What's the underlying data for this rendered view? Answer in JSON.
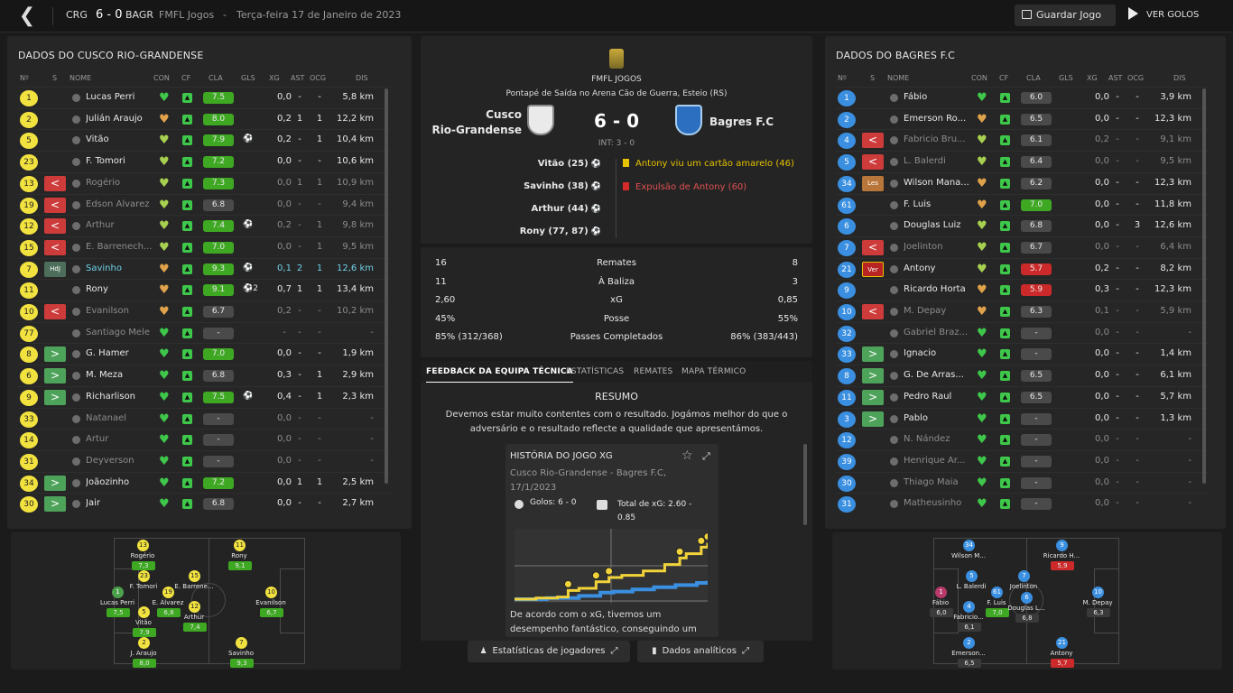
{
  "topbar": {
    "home": "CRG",
    "score": "6 - 0",
    "away": "BAGR",
    "competition": "FMFL Jogos",
    "sep": "-",
    "date": "Terça-feira 17 de Janeiro de 2023",
    "save_label": "Guardar Jogo",
    "goals_label": "VER GOLOS"
  },
  "left_panel": {
    "title": "DADOS DO CUSCO RIO-GRANDENSE"
  },
  "right_panel": {
    "title": "DADOS DO BAGRES F.C"
  },
  "columns": {
    "no": "Nº",
    "s": "S",
    "name": "NOME",
    "con": "CON",
    "cf": "CF",
    "cla": "CLA",
    "gls": "GLS",
    "xg": "XG",
    "ast": "AST",
    "ocg": "OCG",
    "dis": "DIS"
  },
  "home_players": [
    {
      "no": "1",
      "sub": "",
      "name": "Lucas Perri",
      "rating": "7.5",
      "rc": "#3ea823",
      "goals": "",
      "xg": "0,0",
      "ast": "-",
      "ocg": "-",
      "dis": "5,8 km",
      "dim": false,
      "hl": false,
      "heart": "#3ec74a"
    },
    {
      "no": "2",
      "sub": "",
      "name": "Julián Araujo",
      "rating": "8.0",
      "rc": "#3ea823",
      "goals": "",
      "xg": "0,2",
      "ast": "1",
      "ocg": "1",
      "dis": "12,2 km",
      "dim": false,
      "hl": false,
      "heart": "#e0a24a"
    },
    {
      "no": "5",
      "sub": "",
      "name": "Vitão",
      "rating": "7.9",
      "rc": "#3ea823",
      "goals": "⚽",
      "xg": "0,2",
      "ast": "-",
      "ocg": "1",
      "dis": "10,4 km",
      "dim": false,
      "hl": false,
      "heart": "#a8d050"
    },
    {
      "no": "23",
      "sub": "",
      "name": "F. Tomori",
      "rating": "7.2",
      "rc": "#3ea823",
      "goals": "",
      "xg": "0,0",
      "ast": "-",
      "ocg": "-",
      "dis": "10,6 km",
      "dim": false,
      "hl": false,
      "heart": "#a8d050"
    },
    {
      "no": "13",
      "sub": "out",
      "name": "Rogério",
      "rating": "7.3",
      "rc": "#3ea823",
      "goals": "",
      "xg": "0,0",
      "ast": "1",
      "ocg": "1",
      "dis": "10,9 km",
      "dim": true,
      "hl": false,
      "heart": "#a8d050"
    },
    {
      "no": "19",
      "sub": "out",
      "name": "Edson Álvarez",
      "rating": "6.8",
      "rc": "#4a4a4a",
      "goals": "",
      "xg": "0,0",
      "ast": "-",
      "ocg": "-",
      "dis": "9,4 km",
      "dim": true,
      "hl": false,
      "heart": "#a8d050"
    },
    {
      "no": "12",
      "sub": "out",
      "name": "Arthur",
      "rating": "7.4",
      "rc": "#3ea823",
      "goals": "⚽",
      "xg": "0,2",
      "ast": "-",
      "ocg": "1",
      "dis": "9,8 km",
      "dim": true,
      "hl": false,
      "heart": "#a8d050"
    },
    {
      "no": "15",
      "sub": "out",
      "name": "E. Barrenech...",
      "rating": "7.0",
      "rc": "#3ea823",
      "goals": "",
      "xg": "0,0",
      "ast": "-",
      "ocg": "1",
      "dis": "9,5 km",
      "dim": true,
      "hl": false,
      "heart": "#a8d050"
    },
    {
      "no": "7",
      "sub": "hdj",
      "name": "Savinho",
      "rating": "9.3",
      "rc": "#3ea823",
      "goals": "⚽",
      "xg": "0,1",
      "ast": "2",
      "ocg": "1",
      "dis": "12,6 km",
      "dim": false,
      "hl": true,
      "heart": "#e0a24a"
    },
    {
      "no": "11",
      "sub": "",
      "name": "Rony",
      "rating": "9.1",
      "rc": "#3ea823",
      "goals": "⚽2",
      "xg": "0,7",
      "ast": "1",
      "ocg": "1",
      "dis": "13,4 km",
      "dim": false,
      "hl": false,
      "heart": "#e0a24a"
    },
    {
      "no": "10",
      "sub": "out",
      "name": "Evanilson",
      "rating": "6.7",
      "rc": "#4a4a4a",
      "goals": "",
      "xg": "0,2",
      "ast": "-",
      "ocg": "-",
      "dis": "10,2 km",
      "dim": true,
      "hl": false,
      "heart": "#e0a24a"
    },
    {
      "no": "77",
      "sub": "",
      "name": "Santiago Mele",
      "rating": "-",
      "rc": "#4a4a4a",
      "goals": "",
      "xg": "-",
      "ast": "-",
      "ocg": "-",
      "dis": "-",
      "dim": true,
      "hl": false,
      "heart": "#3ec74a"
    },
    {
      "no": "8",
      "sub": "in",
      "name": "G. Hamer",
      "rating": "7.0",
      "rc": "#3ea823",
      "goals": "",
      "xg": "0,0",
      "ast": "-",
      "ocg": "-",
      "dis": "1,9 km",
      "dim": false,
      "hl": false,
      "heart": "#3ec74a"
    },
    {
      "no": "6",
      "sub": "in",
      "name": "M. Meza",
      "rating": "6.8",
      "rc": "#4a4a4a",
      "goals": "",
      "xg": "0,3",
      "ast": "-",
      "ocg": "1",
      "dis": "2,9 km",
      "dim": false,
      "hl": false,
      "heart": "#3ec74a"
    },
    {
      "no": "9",
      "sub": "in",
      "name": "Richarlison",
      "rating": "7.5",
      "rc": "#3ea823",
      "goals": "⚽",
      "xg": "0,4",
      "ast": "-",
      "ocg": "1",
      "dis": "2,3 km",
      "dim": false,
      "hl": false,
      "heart": "#3ec74a"
    },
    {
      "no": "33",
      "sub": "",
      "name": "Natanael",
      "rating": "-",
      "rc": "#4a4a4a",
      "goals": "",
      "xg": "0,0",
      "ast": "-",
      "ocg": "-",
      "dis": "-",
      "dim": true,
      "hl": false,
      "heart": "#3ec74a"
    },
    {
      "no": "14",
      "sub": "",
      "name": "Artur",
      "rating": "-",
      "rc": "#4a4a4a",
      "goals": "",
      "xg": "0,0",
      "ast": "-",
      "ocg": "-",
      "dis": "-",
      "dim": true,
      "hl": false,
      "heart": "#3ec74a"
    },
    {
      "no": "31",
      "sub": "",
      "name": "Deyverson",
      "rating": "-",
      "rc": "#4a4a4a",
      "goals": "",
      "xg": "0,0",
      "ast": "-",
      "ocg": "-",
      "dis": "-",
      "dim": true,
      "hl": false,
      "heart": "#3ec74a"
    },
    {
      "no": "34",
      "sub": "in",
      "name": "Joãozinho",
      "rating": "7.2",
      "rc": "#3ea823",
      "goals": "",
      "xg": "0,0",
      "ast": "1",
      "ocg": "1",
      "dis": "2,5 km",
      "dim": false,
      "hl": false,
      "heart": "#3ec74a"
    },
    {
      "no": "30",
      "sub": "in",
      "name": "Jair",
      "rating": "6.8",
      "rc": "#4a4a4a",
      "goals": "",
      "xg": "0,0",
      "ast": "-",
      "ocg": "-",
      "dis": "2,7 km",
      "dim": false,
      "hl": false,
      "heart": "#3ec74a"
    }
  ],
  "away_players": [
    {
      "no": "1",
      "sub": "",
      "name": "Fábio",
      "rating": "6.0",
      "rc": "#4a4a4a",
      "goals": "",
      "xg": "0,0",
      "ast": "-",
      "ocg": "-",
      "dis": "3,9 km",
      "dim": false,
      "heart": "#3ec74a"
    },
    {
      "no": "2",
      "sub": "",
      "name": "Emerson Ro...",
      "rating": "6.5",
      "rc": "#4a4a4a",
      "goals": "",
      "xg": "0,0",
      "ast": "-",
      "ocg": "-",
      "dis": "12,3 km",
      "dim": false,
      "heart": "#e0a24a"
    },
    {
      "no": "4",
      "sub": "out",
      "name": "Fabricio Bru...",
      "rating": "6.1",
      "rc": "#4a4a4a",
      "goals": "",
      "xg": "0,2",
      "ast": "-",
      "ocg": "-",
      "dis": "9,1 km",
      "dim": true,
      "heart": "#a8d050"
    },
    {
      "no": "5",
      "sub": "out",
      "name": "L. Balerdi",
      "rating": "6.4",
      "rc": "#4a4a4a",
      "goals": "",
      "xg": "0,0",
      "ast": "-",
      "ocg": "-",
      "dis": "9,5 km",
      "dim": true,
      "heart": "#a8d050"
    },
    {
      "no": "34",
      "sub": "les",
      "name": "Wilson Mana...",
      "rating": "6.2",
      "rc": "#4a4a4a",
      "goals": "",
      "xg": "0,0",
      "ast": "-",
      "ocg": "-",
      "dis": "12,3 km",
      "dim": false,
      "heart": "#e0a24a"
    },
    {
      "no": "61",
      "sub": "",
      "name": "F. Luis",
      "rating": "7.0",
      "rc": "#3ea823",
      "goals": "",
      "xg": "0,0",
      "ast": "-",
      "ocg": "-",
      "dis": "11,8 km",
      "dim": false,
      "heart": "#e0a24a"
    },
    {
      "no": "6",
      "sub": "",
      "name": "Douglas Luiz",
      "rating": "6.8",
      "rc": "#4a4a4a",
      "goals": "",
      "xg": "0,0",
      "ast": "-",
      "ocg": "3",
      "dis": "12,6 km",
      "dim": false,
      "heart": "#a8d050"
    },
    {
      "no": "7",
      "sub": "out",
      "name": "Joelinton",
      "rating": "6.7",
      "rc": "#4a4a4a",
      "goals": "",
      "xg": "0,0",
      "ast": "-",
      "ocg": "-",
      "dis": "6,4 km",
      "dim": true,
      "heart": "#a8d050"
    },
    {
      "no": "21",
      "sub": "ver",
      "name": "Antony",
      "rating": "5.7",
      "rc": "#cc2a2a",
      "goals": "",
      "xg": "0,2",
      "ast": "-",
      "ocg": "-",
      "dis": "8,2 km",
      "dim": false,
      "heart": "#a8d050"
    },
    {
      "no": "9",
      "sub": "",
      "name": "Ricardo Horta",
      "rating": "5.9",
      "rc": "#cc2a2a",
      "goals": "",
      "xg": "0,3",
      "ast": "-",
      "ocg": "-",
      "dis": "12,3 km",
      "dim": false,
      "heart": "#e0a24a"
    },
    {
      "no": "10",
      "sub": "out",
      "name": "M. Depay",
      "rating": "6.3",
      "rc": "#4a4a4a",
      "goals": "",
      "xg": "0,1",
      "ast": "-",
      "ocg": "-",
      "dis": "5,9 km",
      "dim": true,
      "heart": "#e0a24a"
    },
    {
      "no": "32",
      "sub": "",
      "name": "Gabriel Braz...",
      "rating": "-",
      "rc": "#4a4a4a",
      "goals": "",
      "xg": "0,0",
      "ast": "-",
      "ocg": "-",
      "dis": "-",
      "dim": true,
      "heart": "#3ec74a"
    },
    {
      "no": "33",
      "sub": "in",
      "name": "Ignacio",
      "rating": "-",
      "rc": "#4a4a4a",
      "goals": "",
      "xg": "0,0",
      "ast": "-",
      "ocg": "-",
      "dis": "1,4 km",
      "dim": false,
      "heart": "#3ec74a"
    },
    {
      "no": "8",
      "sub": "in",
      "name": "G. De Arras...",
      "rating": "6.5",
      "rc": "#4a4a4a",
      "goals": "",
      "xg": "0,0",
      "ast": "-",
      "ocg": "-",
      "dis": "6,1 km",
      "dim": false,
      "heart": "#3ec74a"
    },
    {
      "no": "11",
      "sub": "in",
      "name": "Pedro Raul",
      "rating": "6.5",
      "rc": "#4a4a4a",
      "goals": "",
      "xg": "0,0",
      "ast": "-",
      "ocg": "-",
      "dis": "5,7 km",
      "dim": false,
      "heart": "#3ec74a"
    },
    {
      "no": "3",
      "sub": "in",
      "name": "Pablo",
      "rating": "-",
      "rc": "#4a4a4a",
      "goals": "",
      "xg": "0,0",
      "ast": "-",
      "ocg": "-",
      "dis": "1,3 km",
      "dim": false,
      "heart": "#3ec74a"
    },
    {
      "no": "12",
      "sub": "",
      "name": "N. Nández",
      "rating": "-",
      "rc": "#4a4a4a",
      "goals": "",
      "xg": "0,0",
      "ast": "-",
      "ocg": "-",
      "dis": "-",
      "dim": true,
      "heart": "#3ec74a"
    },
    {
      "no": "39",
      "sub": "",
      "name": "Henrique Ar...",
      "rating": "-",
      "rc": "#4a4a4a",
      "goals": "",
      "xg": "0,0",
      "ast": "-",
      "ocg": "-",
      "dis": "-",
      "dim": true,
      "heart": "#3ec74a"
    },
    {
      "no": "30",
      "sub": "",
      "name": "Thiago Maia",
      "rating": "-",
      "rc": "#4a4a4a",
      "goals": "",
      "xg": "0,0",
      "ast": "-",
      "ocg": "-",
      "dis": "-",
      "dim": true,
      "heart": "#3ec74a"
    },
    {
      "no": "31",
      "sub": "",
      "name": "Matheusinho",
      "rating": "-",
      "rc": "#4a4a4a",
      "goals": "",
      "xg": "0,0",
      "ast": "-",
      "ocg": "-",
      "dis": "-",
      "dim": true,
      "heart": "#3ec74a"
    }
  ],
  "sub_tags": {
    "hdj": "HdJ",
    "les": "Les",
    "ver": "Ver"
  },
  "match": {
    "competition": "FMFL JOGOS",
    "venue": "Pontapé de Saída no Arena Cão de Guerra, Esteio (RS)",
    "home_line1": "Cusco",
    "home_line2": "Rio-Grandense",
    "away": "Bagres F.C",
    "score": "6 - 0",
    "halftime": "INT: 3 - 0",
    "scorers": [
      "Vitão (25)",
      "Savinho (38)",
      "Arthur (44)",
      "Rony (77, 87)"
    ],
    "events": [
      {
        "text": "Antony viu um cartão amarelo (46)",
        "card": "#e6c200",
        "color": "#e6c200"
      },
      {
        "text": "Expulsão de Antony (60)",
        "card": "#d42a2a",
        "color": "#e05050"
      }
    ]
  },
  "stats": [
    {
      "home": "16",
      "label": "Remates",
      "away": "8"
    },
    {
      "home": "11",
      "label": "À Baliza",
      "away": "3"
    },
    {
      "home": "2,60",
      "label": "xG",
      "away": "0,85"
    },
    {
      "home": "45%",
      "label": "Posse",
      "away": "55%"
    },
    {
      "home": "85% (312/368)",
      "label": "Passes Completados",
      "away": "86% (383/443)"
    }
  ],
  "tabs": [
    "FEEDBACK DA EQUIPA TÉCNICA",
    "ESTATÍSTICAS",
    "REMATES",
    "MAPA TÉRMICO"
  ],
  "feedback": {
    "heading": "RESUMO",
    "text": "Devemos estar muito contentes com o resultado. Jogámos melhor do que o adversário e o resultado reflecte a qualidade que apresentámos."
  },
  "xg_card": {
    "title": "HISTÓRIA DO JOGO XG",
    "subtitle": "Cusco Rio-Grandense - Bagres F.C, 17/1/2023",
    "goals": "Golos: 6 - 0",
    "xg_total": "Total de xG: 2.60 - 0.85",
    "desc": "De acordo com o xG, tivemos um desempenho fantástico, conseguindo um",
    "home_color": "#f2d43a",
    "away_color": "#3a8fe0",
    "home_xg": [
      [
        0,
        0
      ],
      [
        10,
        0.05
      ],
      [
        20,
        0.1
      ],
      [
        25,
        0.4
      ],
      [
        30,
        0.5
      ],
      [
        38,
        0.8
      ],
      [
        44,
        1.0
      ],
      [
        50,
        1.1
      ],
      [
        60,
        1.3
      ],
      [
        70,
        1.6
      ],
      [
        77,
        1.9
      ],
      [
        80,
        2.1
      ],
      [
        87,
        2.4
      ],
      [
        90,
        2.6
      ]
    ],
    "away_xg": [
      [
        0,
        0
      ],
      [
        15,
        0.05
      ],
      [
        30,
        0.15
      ],
      [
        40,
        0.3
      ],
      [
        46,
        0.35
      ],
      [
        55,
        0.45
      ],
      [
        65,
        0.55
      ],
      [
        75,
        0.65
      ],
      [
        85,
        0.75
      ],
      [
        90,
        0.85
      ]
    ],
    "goal_minutes": [
      25,
      38,
      44,
      77,
      87,
      90
    ]
  },
  "buttons": {
    "player_stats": "Estatísticas de jogadores",
    "analytics": "Dados analíticos"
  },
  "home_lineup": [
    {
      "no": "1",
      "name": "Lucas Perri",
      "rating": "7,5",
      "col": "g"
    },
    {
      "no": "2",
      "name": "J. Araujo",
      "rating": "8,0",
      "col": "y"
    },
    {
      "no": "5",
      "name": "Vitão",
      "rating": "7,9",
      "col": "y"
    },
    {
      "no": "23",
      "name": "F. Tomori",
      "rating": "",
      "col": "y"
    },
    {
      "no": "13",
      "name": "Rogério",
      "rating": "7,3",
      "col": "y"
    },
    {
      "no": "19",
      "name": "E. Álvarez",
      "rating": "6,8",
      "col": "y"
    },
    {
      "no": "15",
      "name": "E. Barrene...",
      "rating": "",
      "col": "y"
    },
    {
      "no": "12",
      "name": "Arthur",
      "rating": "7,4",
      "col": "y"
    },
    {
      "no": "7",
      "name": "Savinho",
      "rating": "9,3",
      "col": "y"
    },
    {
      "no": "11",
      "name": "Rony",
      "rating": "9,1",
      "col": "y"
    },
    {
      "no": "10",
      "name": "Evanilson",
      "rating": "6,7",
      "col": "y"
    }
  ],
  "away_lineup": [
    {
      "no": "1",
      "name": "Fábio",
      "rating": "6,0",
      "col": "m",
      "rc": "#3a3a3a"
    },
    {
      "no": "2",
      "name": "Emerson...",
      "rating": "6,5",
      "col": "b",
      "rc": "#3a3a3a"
    },
    {
      "no": "5",
      "name": "L. Balerdi",
      "rating": "",
      "col": "b",
      "rc": "#3a3a3a"
    },
    {
      "no": "4",
      "name": "Fabricio...",
      "rating": "6,1",
      "col": "b",
      "rc": "#3a3a3a"
    },
    {
      "no": "34",
      "name": "Wilson M...",
      "rating": "",
      "col": "b",
      "rc": "#3a3a3a"
    },
    {
      "no": "61",
      "name": "F. Luis",
      "rating": "7,0",
      "col": "b",
      "rc": "#3ea823"
    },
    {
      "no": "6",
      "name": "Douglas L...",
      "rating": "6,8",
      "col": "b",
      "rc": "#3a3a3a"
    },
    {
      "no": "7",
      "name": "Joelinton",
      "rating": "",
      "col": "b",
      "rc": "#3a3a3a"
    },
    {
      "no": "9",
      "name": "Ricardo H...",
      "rating": "5,9",
      "col": "b",
      "rc": "#cc2a2a"
    },
    {
      "no": "21",
      "name": "Antony",
      "rating": "5,7",
      "col": "b",
      "rc": "#cc2a2a"
    },
    {
      "no": "10",
      "name": "M. Depay",
      "rating": "6,3",
      "col": "b",
      "rc": "#3a3a3a"
    }
  ]
}
